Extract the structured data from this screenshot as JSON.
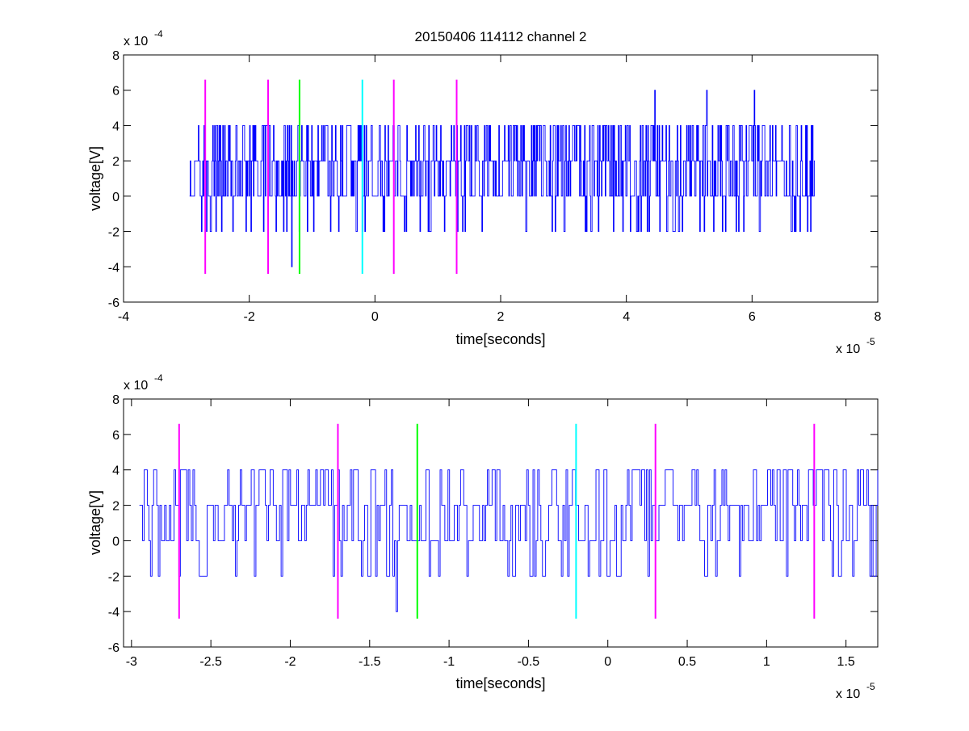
{
  "figure": {
    "title": "20150406 114112 channel 2"
  },
  "chart_data": [
    {
      "type": "line",
      "title": "20150406 114112 channel 2",
      "xlabel": "time[seconds]",
      "ylabel": "voltage[V]",
      "xlim": [
        -4e-05,
        8e-05
      ],
      "ylim": [
        -0.0006,
        0.0008
      ],
      "x_ticks": [
        -4,
        -2,
        0,
        2,
        4,
        6,
        8
      ],
      "y_ticks": [
        -6,
        -4,
        -2,
        0,
        2,
        4,
        6,
        8
      ],
      "x_exponent_label": "x 10",
      "x_exponent": "-5",
      "y_exponent_label": "x 10",
      "y_exponent": "-4",
      "grid": false,
      "signal": {
        "color": "#0000ff",
        "x_start": -2.95e-05,
        "x_end": 7e-05,
        "n_points": 1000,
        "levels": [
          -0.0004,
          -0.0002,
          0,
          0.0002,
          0.0004,
          0.0006
        ],
        "peak_points": [
          [
            4.45e-05,
            0.0006
          ],
          [
            5.28e-05,
            0.0006
          ],
          [
            6.03e-05,
            0.0006
          ]
        ],
        "low_points": [
          [
            -1.33e-05,
            -0.0004
          ]
        ]
      },
      "markers": [
        {
          "x": -2.7e-05,
          "y0": -0.00044,
          "y1": 0.00066,
          "color": "#ff00ff"
        },
        {
          "x": -1.7e-05,
          "y0": -0.00044,
          "y1": 0.00066,
          "color": "#ff00ff"
        },
        {
          "x": -1.2e-05,
          "y0": -0.00044,
          "y1": 0.00066,
          "color": "#00ff00"
        },
        {
          "x": -2e-06,
          "y0": -0.00044,
          "y1": 0.00066,
          "color": "#00ffff"
        },
        {
          "x": 3e-06,
          "y0": -0.00044,
          "y1": 0.00066,
          "color": "#ff00ff"
        },
        {
          "x": 1.3e-05,
          "y0": -0.00044,
          "y1": 0.00066,
          "color": "#ff00ff"
        }
      ]
    },
    {
      "type": "line",
      "title": "",
      "xlabel": "time[seconds]",
      "ylabel": "voltage[V]",
      "xlim": [
        -3.05e-05,
        1.7e-05
      ],
      "ylim": [
        -0.0006,
        0.0008
      ],
      "x_ticks": [
        -3,
        -2.5,
        -2,
        -1.5,
        -1,
        -0.5,
        0,
        0.5,
        1,
        1.5
      ],
      "y_ticks": [
        -6,
        -4,
        -2,
        0,
        2,
        4,
        6,
        8
      ],
      "x_exponent_label": "x 10",
      "x_exponent": "-5",
      "y_exponent_label": "x 10",
      "y_exponent": "-4",
      "grid": false,
      "signal": {
        "color": "#0000ff",
        "x_start": -2.95e-05,
        "x_end": 1.7e-05,
        "n_points": 470,
        "levels": [
          -0.0004,
          -0.0002,
          0,
          0.0002,
          0.0004
        ],
        "peak_points": [],
        "low_points": [
          [
            -1.33e-05,
            -0.0004
          ]
        ]
      },
      "markers": [
        {
          "x": -2.7e-05,
          "y0": -0.00044,
          "y1": 0.00066,
          "color": "#ff00ff"
        },
        {
          "x": -1.7e-05,
          "y0": -0.00044,
          "y1": 0.00066,
          "color": "#ff00ff"
        },
        {
          "x": -1.2e-05,
          "y0": -0.00044,
          "y1": 0.00066,
          "color": "#00ff00"
        },
        {
          "x": -2e-06,
          "y0": -0.00044,
          "y1": 0.00066,
          "color": "#00ffff"
        },
        {
          "x": 3e-06,
          "y0": -0.00044,
          "y1": 0.00066,
          "color": "#ff00ff"
        },
        {
          "x": 1.3e-05,
          "y0": -0.00044,
          "y1": 0.00066,
          "color": "#ff00ff"
        }
      ]
    }
  ]
}
